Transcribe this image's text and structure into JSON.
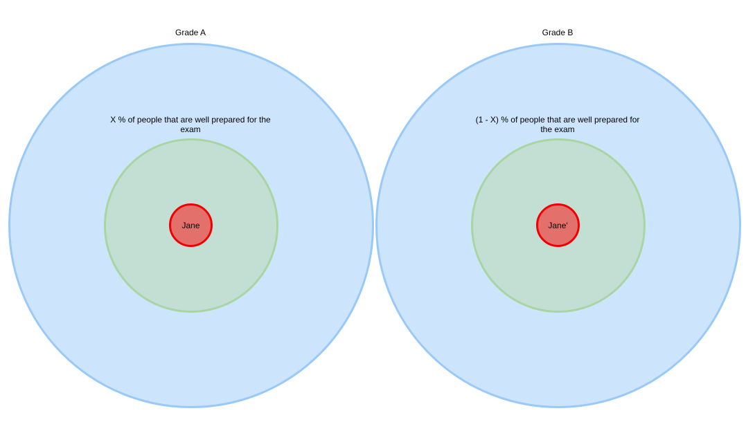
{
  "diagram": {
    "left": {
      "title": "Grade A",
      "description": "X % of people that are well prepared for the exam",
      "person": "Jane"
    },
    "right": {
      "title": "Grade B",
      "description": "(1 - X) % of people that are well prepared for the exam",
      "person": "Jane'"
    }
  },
  "colors": {
    "outer_fill": "#cce5fc",
    "outer_stroke": "#99c9f9",
    "inner_fill": "#c3dfd4",
    "inner_stroke": "#a9d5a1",
    "person_fill": "#e4706b",
    "person_stroke": "#f00000"
  }
}
